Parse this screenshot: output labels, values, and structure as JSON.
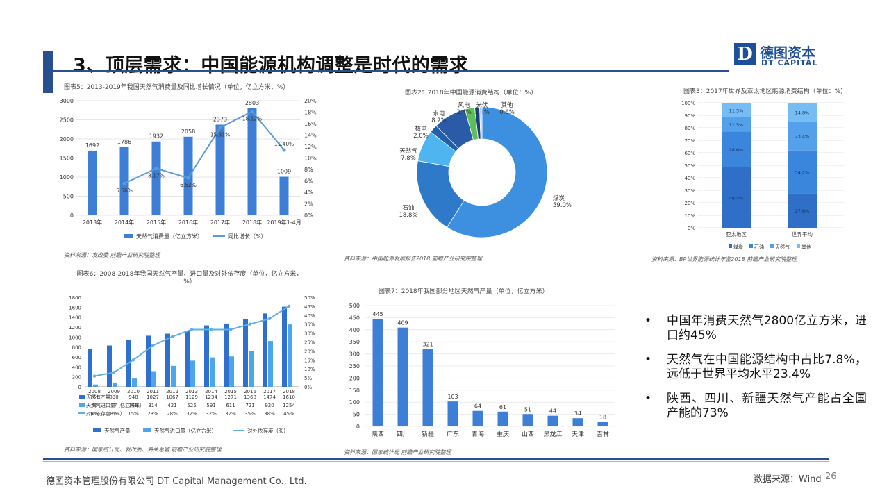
{
  "header": {
    "title": "3、顶层需求：中国能源机构调整是时代的需求",
    "logo_letter": "D",
    "logo_cn": "德图资本",
    "logo_en": "DT CAPITAL"
  },
  "bullets": [
    "中国年消费天然气2800亿立方米，进口约45%",
    "天然气在中国能源结构中占比7.8%，远低于世界平均水平23.4%",
    "陕西、四川、新疆天然气产能占全国产能的73%"
  ],
  "footer": {
    "company": "德图资本管理股份有限公司 DT Capital Management Co., Ltd.",
    "source": "数据来源：Wind",
    "page": "26"
  },
  "chart_data": [
    {
      "type": "bar",
      "title": "图表5：2013-2019年我国天然气消费量及同比增长情况（单位，亿立方米，%）",
      "categories": [
        "2013年",
        "2014年",
        "2015年",
        "2016年",
        "2017年",
        "2018年",
        "2019年1-4月"
      ],
      "series": [
        {
          "name": "天然气消费量（亿立方米）",
          "type": "bar",
          "values": [
            1692,
            1786,
            1932,
            2058,
            2373,
            2803,
            1009
          ],
          "labels": [
            "1692",
            "1786",
            "1932",
            "2058",
            "2373",
            "2803",
            "1009"
          ]
        },
        {
          "name": "同比增长（%）",
          "type": "line",
          "axis": "right",
          "values": [
            null,
            5.56,
            8.17,
            6.52,
            15.31,
            18.12,
            11.4
          ],
          "labels": [
            "",
            "5.56%",
            "8.17%",
            "6.52%",
            "15.31%",
            "18.12%",
            "11.40%"
          ]
        }
      ],
      "ylim": [
        0,
        3000
      ],
      "yticks": [
        "0",
        "500",
        "1000",
        "1500",
        "2000",
        "2500",
        "3000"
      ],
      "y2lim": [
        0,
        20
      ],
      "y2ticks": [
        "0%",
        "2%",
        "4%",
        "6%",
        "8%",
        "10%",
        "12%",
        "14%",
        "16%",
        "18%",
        "20%"
      ],
      "source": "资料来源：发改委 前瞻产业研究院整理",
      "colors": {
        "bar": "#3d7fd6",
        "line": "#5b9bd5"
      }
    },
    {
      "type": "pie",
      "title": "图表2：2018年中国能源消费结构（单位：%）",
      "slices": [
        {
          "label": "煤炭",
          "value": 59.0,
          "text": "59.0%",
          "color": "#3d8fe0"
        },
        {
          "label": "石油",
          "value": 18.8,
          "text": "18.8%",
          "color": "#2f79c9"
        },
        {
          "label": "天然气",
          "value": 7.8,
          "text": "7.8%",
          "color": "#4fb5f0"
        },
        {
          "label": "核电",
          "value": 2.0,
          "text": "2.0%",
          "color": "#1e5fae"
        },
        {
          "label": "水电",
          "value": 8.2,
          "text": "8.2%",
          "color": "#2b5ba8"
        },
        {
          "label": "风电",
          "value": 2.4,
          "text": "2.4%",
          "color": "#5cbf5a"
        },
        {
          "label": "光伏",
          "value": 1.2,
          "text": "1.2%",
          "color": "#1a3f7a"
        },
        {
          "label": "其他",
          "value": 0.6,
          "text": "0.6%",
          "color": "#9ec9f0"
        }
      ],
      "source": "资料来源：中国能源发展报告2018 前瞻产业研究院整理"
    },
    {
      "type": "bar",
      "stacked": true,
      "title": "图表3：2017年世界及亚太地区能源消费结构（单位：%）",
      "categories": [
        "亚太地区",
        "世界平均"
      ],
      "series": [
        {
          "name": "煤炭",
          "values": [
            48.4,
            27.6
          ],
          "labels": [
            "48.4%",
            "27.6%"
          ],
          "color": "#2f6fc7"
        },
        {
          "name": "石油",
          "values": [
            28.6,
            34.2
          ],
          "labels": [
            "28.6%",
            "34.2%"
          ],
          "color": "#3a86dc"
        },
        {
          "name": "天然气",
          "values": [
            11.5,
            23.4
          ],
          "labels": [
            "11.5%",
            "23.4%"
          ],
          "color": "#55a0ea"
        },
        {
          "name": "其他",
          "values": [
            11.5,
            14.8
          ],
          "labels": [
            "11.5%",
            "14.8%"
          ],
          "color": "#77bdf5"
        }
      ],
      "ylim": [
        0,
        100
      ],
      "yticks": [
        "0%",
        "10%",
        "20%",
        "30%",
        "40%",
        "50%",
        "60%",
        "70%",
        "80%",
        "90%",
        "100%"
      ],
      "source": "资料来源：BP世界能源统计年鉴2018 前瞻产业研究院整理"
    },
    {
      "type": "bar",
      "title": "图表6：2008-2018年我国天然气产量、进口量及对外依存度（单位，亿立方米，%）",
      "categories": [
        "2008",
        "2009",
        "2010",
        "2011",
        "2012",
        "2013",
        "2014",
        "2015",
        "2016",
        "2017",
        "2018"
      ],
      "series": [
        {
          "name": "天然气产量",
          "values": [
            761,
            830,
            948,
            1027,
            1067,
            1129,
            1234,
            1271,
            1368,
            1474,
            1610
          ],
          "color": "#2e6fd0"
        },
        {
          "name": "天然气进口量（亿立方米）",
          "values": [
            46,
            77,
            166,
            314,
            421,
            525,
            591,
            611,
            721,
            920,
            1254
          ],
          "color": "#4da6ea"
        },
        {
          "name": "对外依存度（%）",
          "type": "line",
          "axis": "right",
          "values": [
            6,
            8,
            15,
            23,
            28,
            32,
            32,
            32,
            35,
            38,
            45
          ],
          "labels": [
            "6%",
            "8%",
            "15%",
            "23%",
            "28%",
            "32%",
            "32%",
            "32%",
            "35%",
            "38%",
            "45%"
          ],
          "color": "#5fb0e6"
        }
      ],
      "table_rows": [
        {
          "name": "天然气产量",
          "cells": [
            "761",
            "830",
            "948",
            "1027",
            "1067",
            "1129",
            "1234",
            "1271",
            "1368",
            "1474",
            "1610"
          ]
        },
        {
          "name": "天然气进口量（亿立方米）",
          "cells": [
            "46",
            "77",
            "166",
            "314",
            "421",
            "525",
            "591",
            "611",
            "721",
            "920",
            "1254"
          ]
        },
        {
          "name": "对外依存度（%）",
          "cells": [
            "6%",
            "8%",
            "15%",
            "23%",
            "28%",
            "32%",
            "32%",
            "32%",
            "35%",
            "38%",
            "45%"
          ]
        }
      ],
      "ylim": [
        0,
        1800
      ],
      "yticks": [
        "0",
        "200",
        "400",
        "600",
        "800",
        "1000",
        "1200",
        "1400",
        "1600",
        "1800"
      ],
      "y2lim": [
        0,
        50
      ],
      "y2ticks": [
        "0%",
        "5%",
        "10%",
        "15%",
        "20%",
        "25%",
        "30%",
        "35%",
        "40%",
        "45%",
        "50%"
      ],
      "source": "资料来源：国家统计局、发改委、海关总署 前瞻产业研究院整理"
    },
    {
      "type": "bar",
      "title": "图表7：2018年我国部分地区天然气产量（单位，亿立方米）",
      "categories": [
        "陕西",
        "四川",
        "新疆",
        "广东",
        "青海",
        "重庆",
        "山西",
        "黑龙江",
        "天津",
        "吉林"
      ],
      "values": [
        445,
        409,
        321,
        103,
        64,
        61,
        51,
        44,
        34,
        18
      ],
      "labels": [
        "445",
        "409",
        "321",
        "103",
        "64",
        "61",
        "51",
        "44",
        "34",
        "18"
      ],
      "ylim": [
        0,
        500
      ],
      "yticks": [
        "0",
        "50",
        "100",
        "150",
        "200",
        "250",
        "300",
        "350",
        "400",
        "450",
        "500"
      ],
      "source": "资料来源：国家统计局 前瞻产业研究院整理",
      "colors": {
        "bar": "#3d7fd6"
      }
    }
  ]
}
